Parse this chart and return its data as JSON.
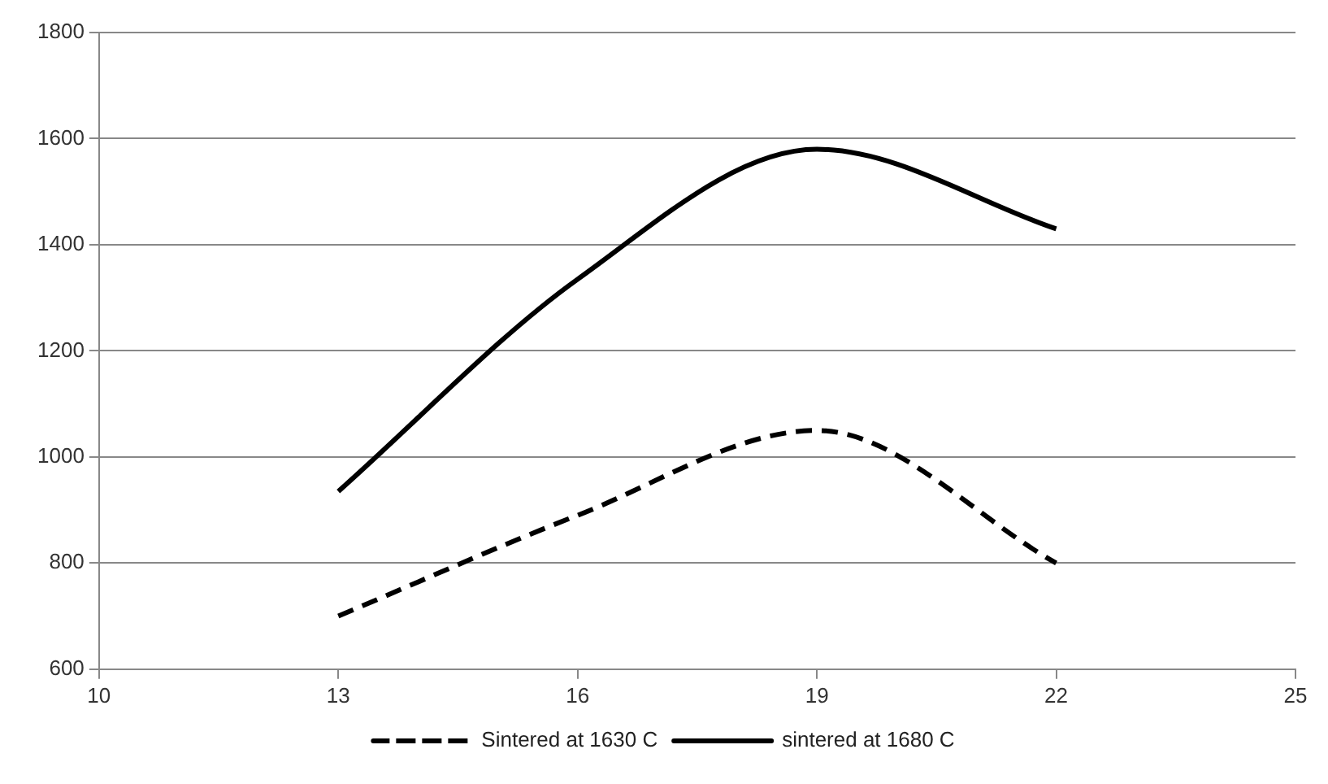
{
  "chart_data": {
    "type": "line",
    "x": [
      13,
      16,
      19,
      22
    ],
    "series": [
      {
        "name": "Sintered at 1630 C",
        "color": "#000000",
        "values": [
          700,
          890,
          1050,
          800
        ],
        "line_style": "dashed"
      },
      {
        "name": "sintered at 1680 C",
        "color": "#000000",
        "values": [
          935,
          1335,
          1580,
          1430
        ],
        "line_style": "solid"
      }
    ],
    "xlim": [
      10,
      25
    ],
    "xticks": [
      10,
      13,
      16,
      19,
      22,
      25
    ],
    "ylim": [
      600,
      1800
    ],
    "yticks": [
      600,
      800,
      1000,
      1200,
      1400,
      1600,
      1800
    ],
    "grid": "y",
    "legend": "bottom",
    "marker": "none"
  }
}
